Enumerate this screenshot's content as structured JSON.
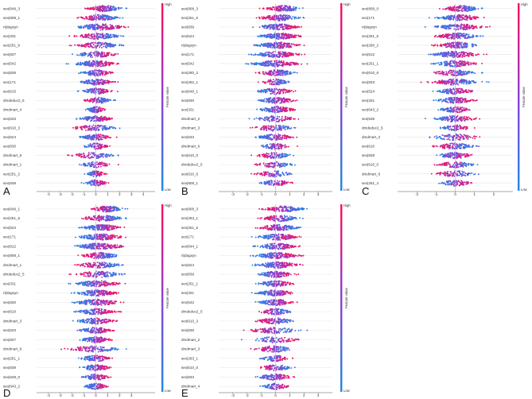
{
  "colors": {
    "low": "#1e88e5",
    "high": "#ff0d57",
    "grid": "#e6e6e6",
    "zero": "#bdbdbd"
  },
  "colorbar": {
    "low_label": "Low",
    "high_label": "High",
    "title": "Feature value"
  },
  "chart_data": [
    {
      "type": "scatter",
      "panel_label": "A",
      "xlim": [
        -5,
        5
      ],
      "xticks": [
        "-4",
        "-3",
        "-2",
        "-1",
        "0",
        "1",
        "2",
        "3",
        "4"
      ],
      "features": [
        {
          "name": "sex|649_3",
          "center": 0.8,
          "spread": 1.8,
          "skew": -1,
          "density": 1.0
        },
        {
          "name": "sex|808_1",
          "center": 0.3,
          "spread": 2.0,
          "skew": -1,
          "density": 1.0
        },
        {
          "name": "rt|dagxyn",
          "center": 0.4,
          "spread": 2.6,
          "skew": 1,
          "density": 1.2
        },
        {
          "name": "sex|331",
          "center": 0.2,
          "spread": 2.4,
          "skew": -1,
          "density": 1.0
        },
        {
          "name": "sex|251_b",
          "center": 0.2,
          "spread": 2.4,
          "skew": -1,
          "density": 0.9
        },
        {
          "name": "sex|827",
          "center": 0.1,
          "spread": 2.2,
          "skew": 1,
          "density": 0.8
        },
        {
          "name": "sex|542",
          "center": 0.0,
          "spread": 2.4,
          "skew": 1,
          "density": 1.2
        },
        {
          "name": "sex|836",
          "center": 0.1,
          "spread": 1.8,
          "skew": 1,
          "density": 0.8
        },
        {
          "name": "sex|171",
          "center": 0.1,
          "spread": 1.8,
          "skew": 1,
          "density": 0.9
        },
        {
          "name": "sex|915",
          "center": 0.0,
          "spread": 1.6,
          "skew": 1,
          "density": 0.8
        },
        {
          "name": "dmdeduc2_5",
          "center": 0.2,
          "spread": 1.4,
          "skew": -1,
          "density": 0.7
        },
        {
          "name": "dmdmart_4",
          "center": 0.0,
          "spread": 1.0,
          "skew": 1,
          "density": 0.6
        },
        {
          "name": "sex|533",
          "center": 0.0,
          "spread": 1.8,
          "skew": 1,
          "density": 0.9
        },
        {
          "name": "sex|610_3",
          "center": -0.1,
          "spread": 2.4,
          "skew": -1,
          "density": 0.8
        },
        {
          "name": "sex|524",
          "center": 0.0,
          "spread": 1.6,
          "skew": 1,
          "density": 0.8
        },
        {
          "name": "sex|830",
          "center": 0.0,
          "spread": 1.4,
          "skew": 1,
          "density": 0.6
        },
        {
          "name": "dmdmart_6",
          "center": -0.2,
          "spread": 2.4,
          "skew": -1,
          "density": 0.7
        },
        {
          "name": "dmdmart_1",
          "center": 0.0,
          "spread": 1.6,
          "skew": 1,
          "density": 0.6
        },
        {
          "name": "sex|251_2",
          "center": 0.0,
          "spread": 1.0,
          "skew": 1,
          "density": 0.6
        },
        {
          "name": "sex|839",
          "center": 0.0,
          "spread": 1.2,
          "skew": 1,
          "density": 0.7
        }
      ]
    },
    {
      "type": "scatter",
      "panel_label": "B",
      "xlim": [
        -4,
        4
      ],
      "xticks": [
        "-3",
        "-2",
        "-1",
        "0",
        "1",
        "2",
        "3"
      ],
      "features": [
        {
          "name": "sex|808_3",
          "center": 0.6,
          "spread": 1.6,
          "skew": -1,
          "density": 1.0
        },
        {
          "name": "sex|251_6",
          "center": 0.3,
          "spread": 1.8,
          "skew": -1,
          "density": 1.0
        },
        {
          "name": "sex|839",
          "center": 0.2,
          "spread": 1.8,
          "skew": 1,
          "density": 1.0
        },
        {
          "name": "sex|524",
          "center": 0.3,
          "spread": 1.8,
          "skew": 1,
          "density": 1.2
        },
        {
          "name": "rt|dagxyn",
          "center": 0.2,
          "spread": 2.0,
          "skew": 1,
          "density": 1.2
        },
        {
          "name": "sex|171",
          "center": 0.1,
          "spread": 2.0,
          "skew": 1,
          "density": 1.1
        },
        {
          "name": "sex|542",
          "center": 0.0,
          "spread": 2.2,
          "skew": 1,
          "density": 1.2
        },
        {
          "name": "sex|280_2",
          "center": 0.1,
          "spread": 1.6,
          "skew": -1,
          "density": 0.9
        },
        {
          "name": "sex|282_1",
          "center": 0.0,
          "spread": 1.2,
          "skew": -1,
          "density": 0.6
        },
        {
          "name": "sex|648_1",
          "center": 0.0,
          "spread": 1.6,
          "skew": 1,
          "density": 0.7
        },
        {
          "name": "sex|830",
          "center": 0.1,
          "spread": 1.6,
          "skew": 1,
          "density": 1.0
        },
        {
          "name": "sex|331",
          "center": 0.1,
          "spread": 1.6,
          "skew": 1,
          "density": 1.0
        },
        {
          "name": "dmdmart_2",
          "center": 0.0,
          "spread": 2.0,
          "skew": 1,
          "density": 0.6
        },
        {
          "name": "dmdmart_3",
          "center": -0.1,
          "spread": 1.8,
          "skew": -1,
          "density": 0.7
        },
        {
          "name": "sex|533",
          "center": 0.0,
          "spread": 1.6,
          "skew": 1,
          "density": 0.9
        },
        {
          "name": "dmdmart_6",
          "center": 0.0,
          "spread": 1.4,
          "skew": 1,
          "density": 0.6
        },
        {
          "name": "sex|610_0",
          "center": -0.1,
          "spread": 1.6,
          "skew": -1,
          "density": 0.7
        },
        {
          "name": "dmdeduc2_5",
          "center": -0.1,
          "spread": 1.6,
          "skew": -1,
          "density": 0.6
        },
        {
          "name": "sex|610_6",
          "center": -0.1,
          "spread": 1.6,
          "skew": -1,
          "density": 0.6
        },
        {
          "name": "sex|808_1",
          "center": 0.0,
          "spread": 1.4,
          "skew": 1,
          "density": 0.6
        }
      ]
    },
    {
      "type": "scatter",
      "panel_label": "C",
      "xlim": [
        -3,
        3
      ],
      "xticks": [
        "-2",
        "-1",
        "0",
        "1",
        "2"
      ],
      "features": [
        {
          "name": "sex|809_0",
          "center": 0.3,
          "spread": 1.2,
          "skew": -1,
          "density": 1.0
        },
        {
          "name": "sex|171",
          "center": 0.2,
          "spread": 1.4,
          "skew": 1,
          "density": 1.0
        },
        {
          "name": "rt|dagxyn",
          "center": 0.2,
          "spread": 1.6,
          "skew": 1,
          "density": 1.1
        },
        {
          "name": "sex|251_5",
          "center": 0.1,
          "spread": 1.4,
          "skew": -1,
          "density": 1.0
        },
        {
          "name": "sex|280_2",
          "center": 0.1,
          "spread": 1.4,
          "skew": -1,
          "density": 1.0
        },
        {
          "name": "sex|512",
          "center": 0.0,
          "spread": 1.6,
          "skew": 1,
          "density": 1.2
        },
        {
          "name": "sex|251_1",
          "center": 0.0,
          "spread": 1.4,
          "skew": 1,
          "density": 1.0
        },
        {
          "name": "sex|610_6",
          "center": 0.0,
          "spread": 1.4,
          "skew": -1,
          "density": 0.8
        },
        {
          "name": "sex|833",
          "center": 0.0,
          "spread": 1.6,
          "skew": -1,
          "density": 1.0
        },
        {
          "name": "sex|524",
          "center": 0.0,
          "spread": 1.2,
          "skew": 1,
          "density": 0.9
        },
        {
          "name": "sex|331",
          "center": 0.0,
          "spread": 1.2,
          "skew": 1,
          "density": 0.9
        },
        {
          "name": "sex|643_2",
          "center": 0.0,
          "spread": 1.0,
          "skew": 1,
          "density": 0.7
        },
        {
          "name": "sex|536",
          "center": 0.0,
          "spread": 1.4,
          "skew": 1,
          "density": 0.9
        },
        {
          "name": "dmdeduc2_5",
          "center": 0.0,
          "spread": 1.0,
          "skew": 1,
          "density": 0.6
        },
        {
          "name": "dmdmart_2",
          "center": 0.0,
          "spread": 1.8,
          "skew": 1,
          "density": 0.6
        },
        {
          "name": "sex|610",
          "center": 0.0,
          "spread": 1.4,
          "skew": -1,
          "density": 0.8
        },
        {
          "name": "sex|839",
          "center": 0.0,
          "spread": 1.2,
          "skew": 1,
          "density": 0.8
        },
        {
          "name": "sex|610_0",
          "center": 0.0,
          "spread": 1.2,
          "skew": -1,
          "density": 0.7
        },
        {
          "name": "dmdmart_6",
          "center": 0.0,
          "spread": 1.4,
          "skew": -1,
          "density": 0.6
        },
        {
          "name": "sex|251_4",
          "center": 0.0,
          "spread": 1.0,
          "skew": 1,
          "density": 0.6
        }
      ]
    },
    {
      "type": "scatter",
      "panel_label": "D",
      "xlim": [
        -5,
        5
      ],
      "xticks": [
        "-4",
        "-3",
        "-2",
        "-1",
        "0",
        "1",
        "2",
        "3"
      ],
      "features": [
        {
          "name": "sex|649_1",
          "center": 1.0,
          "spread": 1.6,
          "skew": -1,
          "density": 1.0
        },
        {
          "name": "sex|251_5",
          "center": 0.6,
          "spread": 2.2,
          "skew": -1,
          "density": 1.0
        },
        {
          "name": "sex|524",
          "center": 0.5,
          "spread": 2.0,
          "skew": 1,
          "density": 1.1
        },
        {
          "name": "sex|171",
          "center": 0.4,
          "spread": 2.4,
          "skew": 1,
          "density": 1.2
        },
        {
          "name": "sex|912",
          "center": 0.3,
          "spread": 2.6,
          "skew": 1,
          "density": 1.3
        },
        {
          "name": "sex|808_1",
          "center": 0.4,
          "spread": 2.0,
          "skew": -1,
          "density": 1.0
        },
        {
          "name": "dmdmart_1",
          "center": 0.3,
          "spread": 2.4,
          "skew": -1,
          "density": 0.9
        },
        {
          "name": "dmdeduc2_5",
          "center": 0.2,
          "spread": 2.6,
          "skew": -1,
          "density": 0.8
        },
        {
          "name": "sex|331",
          "center": 0.1,
          "spread": 2.4,
          "skew": 1,
          "density": 1.1
        },
        {
          "name": "rt|dagxyn",
          "center": 0.1,
          "spread": 2.2,
          "skew": 1,
          "density": 1.1
        },
        {
          "name": "sex|830",
          "center": 0.1,
          "spread": 2.6,
          "skew": 1,
          "density": 1.1
        },
        {
          "name": "sex|610",
          "center": 0.0,
          "spread": 2.0,
          "skew": 1,
          "density": 1.0
        },
        {
          "name": "dmdmart_3",
          "center": 0.0,
          "spread": 2.0,
          "skew": 1,
          "density": 0.9
        },
        {
          "name": "sex|533",
          "center": 0.0,
          "spread": 1.8,
          "skew": 1,
          "density": 0.9
        },
        {
          "name": "sex|827",
          "center": 0.0,
          "spread": 1.6,
          "skew": 1,
          "density": 0.8
        },
        {
          "name": "dmdmart_6",
          "center": -0.2,
          "spread": 2.8,
          "skew": -1,
          "density": 0.8
        },
        {
          "name": "sex|251_1",
          "center": 0.0,
          "spread": 1.6,
          "skew": 1,
          "density": 0.8
        },
        {
          "name": "sex|839",
          "center": 0.0,
          "spread": 1.6,
          "skew": 1,
          "density": 0.8
        },
        {
          "name": "sex|649_0",
          "center": 0.0,
          "spread": 1.4,
          "skew": 1,
          "density": 0.7
        },
        {
          "name": "sex|643_2",
          "center": 0.0,
          "spread": 1.2,
          "skew": 1,
          "density": 0.7
        }
      ]
    },
    {
      "type": "scatter",
      "panel_label": "E",
      "xlim": [
        -4,
        4
      ],
      "xticks": [
        "-3",
        "-2",
        "-1",
        "0",
        "1",
        "2",
        "3"
      ],
      "features": [
        {
          "name": "sex|808_3",
          "center": 0.6,
          "spread": 1.8,
          "skew": -1,
          "density": 1.0
        },
        {
          "name": "sex|283_1",
          "center": 0.3,
          "spread": 1.6,
          "skew": -1,
          "density": 0.9
        },
        {
          "name": "sex|251_5",
          "center": 0.2,
          "spread": 1.8,
          "skew": -1,
          "density": 1.0
        },
        {
          "name": "sex|171",
          "center": 0.2,
          "spread": 1.8,
          "skew": 1,
          "density": 1.0
        },
        {
          "name": "sex|644_1",
          "center": 0.1,
          "spread": 1.8,
          "skew": 1,
          "density": 1.0
        },
        {
          "name": "rt|dagxyn",
          "center": 0.1,
          "spread": 2.0,
          "skew": 1,
          "density": 1.2
        },
        {
          "name": "sex|524",
          "center": 0.1,
          "spread": 2.0,
          "skew": 1,
          "density": 1.2
        },
        {
          "name": "sex|839",
          "center": 0.0,
          "spread": 1.6,
          "skew": 1,
          "density": 1.0
        },
        {
          "name": "sex|251_1",
          "center": 0.0,
          "spread": 1.6,
          "skew": 1,
          "density": 0.9
        },
        {
          "name": "sex|331",
          "center": 0.0,
          "spread": 1.6,
          "skew": 1,
          "density": 1.0
        },
        {
          "name": "sex|542",
          "center": 0.0,
          "spread": 1.6,
          "skew": 1,
          "density": 1.0
        },
        {
          "name": "dmdeduc2_5",
          "center": 0.0,
          "spread": 1.4,
          "skew": -1,
          "density": 0.7
        },
        {
          "name": "sex|610_3",
          "center": 0.0,
          "spread": 1.6,
          "skew": -1,
          "density": 0.8
        },
        {
          "name": "sex|836",
          "center": -0.1,
          "spread": 2.2,
          "skew": -1,
          "density": 0.8
        },
        {
          "name": "dmdmart_2",
          "center": 0.0,
          "spread": 2.0,
          "skew": 1,
          "density": 0.6
        },
        {
          "name": "dmdmart_3",
          "center": -0.1,
          "spread": 1.8,
          "skew": -1,
          "density": 0.7
        },
        {
          "name": "sex|283_1",
          "center": 0.0,
          "spread": 1.2,
          "skew": 1,
          "density": 0.6
        },
        {
          "name": "sex|610_0",
          "center": 0.0,
          "spread": 1.4,
          "skew": -1,
          "density": 0.7
        },
        {
          "name": "sex|833",
          "center": 0.0,
          "spread": 1.6,
          "skew": 1,
          "density": 0.9
        },
        {
          "name": "dmdmart_4",
          "center": 0.0,
          "spread": 1.2,
          "skew": 1,
          "density": 0.6
        }
      ]
    }
  ]
}
